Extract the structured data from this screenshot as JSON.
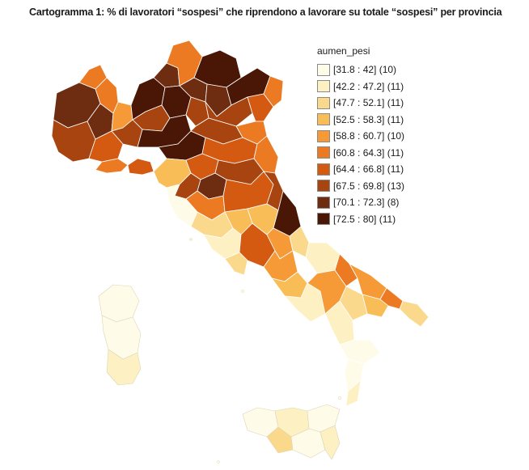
{
  "title": "Cartogramma 1: % di lavoratori “sospesi” che riprendono a lavorare su totale “sospesi” per provincia",
  "legend": {
    "title": "aumen_pesi",
    "items": [
      {
        "label": "[31.8 : 42] (10)",
        "color": "#fffbe9"
      },
      {
        "label": "[42.2 : 47.2] (11)",
        "color": "#fdf0c2"
      },
      {
        "label": "[47.7 : 52.1] (11)",
        "color": "#fbd98c"
      },
      {
        "label": "[52.5 : 58.3] (11)",
        "color": "#f9bd57"
      },
      {
        "label": "[58.8 : 60.7] (10)",
        "color": "#f59a36"
      },
      {
        "label": "[60.8 : 64.3] (11)",
        "color": "#ec7a23"
      },
      {
        "label": "[64.4 : 66.8] (11)",
        "color": "#d45a12"
      },
      {
        "label": "[67.5 : 69.8] (13)",
        "color": "#a84410"
      },
      {
        "label": "[70.1 : 72.3] (8)",
        "color": "#6e2c10"
      },
      {
        "label": "[72.5 : 80] (11)",
        "color": "#4a1706"
      }
    ]
  }
}
